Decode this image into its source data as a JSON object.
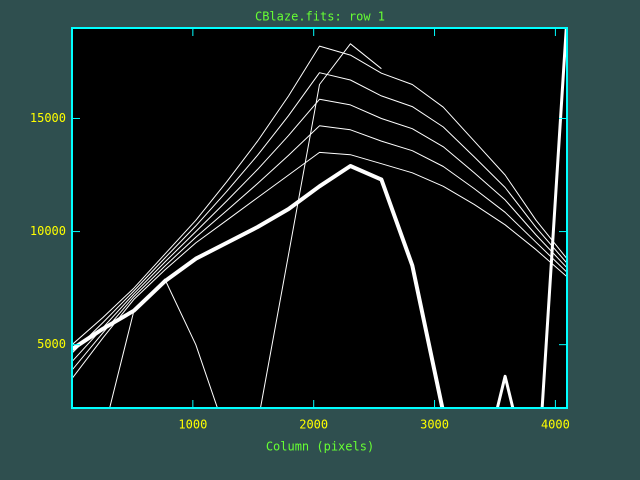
{
  "chart_data": {
    "type": "line",
    "title": "CBlaze.fits: row 1",
    "xlabel": "Column (pixels)",
    "x": [
      0,
      256,
      512,
      768,
      1024,
      1280,
      1536,
      1792,
      2048,
      2304,
      2560,
      2816,
      3072,
      3328,
      3584,
      3840,
      4096
    ],
    "series": [
      {
        "color": "#ffffff",
        "line_width": 1,
        "values": [
          3500,
          5300,
          7000,
          8300,
          9500,
          10500,
          11500,
          12500,
          13500,
          13400,
          13000,
          12600,
          12000,
          11200,
          10300,
          9200,
          8000
        ]
      },
      {
        "color": "#ffffff",
        "line_width": 1,
        "values": [
          3875,
          5525,
          7125,
          8475,
          9750,
          10925,
          12125,
          13375,
          14675,
          14500,
          14000,
          13575,
          12875,
          11900,
          10850,
          9525,
          8200
        ]
      },
      {
        "color": "#ffffff",
        "line_width": 1,
        "values": [
          4250,
          5750,
          7250,
          8650,
          10000,
          11350,
          12750,
          14250,
          15850,
          15600,
          15000,
          14550,
          13750,
          12600,
          11400,
          9850,
          8400
        ]
      },
      {
        "color": "#ffffff",
        "line_width": 1,
        "values": [
          4625,
          5975,
          7375,
          8825,
          10250,
          11775,
          13375,
          15125,
          17025,
          16700,
          16000,
          15525,
          14625,
          13300,
          11950,
          10175,
          8600
        ]
      },
      {
        "color": "#ffffff",
        "line_width": 1,
        "values": [
          5000,
          6200,
          7500,
          9000,
          10500,
          12200,
          14000,
          16000,
          18200,
          17800,
          17000,
          16500,
          15500,
          14000,
          12500,
          10500,
          8800
        ]
      },
      {
        "color": "#ffffff",
        "line_width": 4,
        "values": [
          4800,
          5700,
          6500,
          7800,
          8800,
          9500,
          10200,
          11000,
          12000,
          12900,
          12300,
          8500,
          2000,
          null,
          null,
          null,
          null
        ]
      },
      {
        "color": "#ffffff",
        "line_width": 1,
        "values": [
          null,
          null,
          null,
          null,
          null,
          null,
          1500,
          9000,
          16500,
          18300,
          17200,
          null,
          null,
          null,
          null,
          null,
          null
        ]
      },
      {
        "color": "#ffffff",
        "line_width": 1,
        "values": [
          null,
          1000,
          6500,
          7900,
          5000,
          1000,
          null,
          null,
          null,
          null,
          null,
          null,
          null,
          null,
          null,
          null,
          null
        ]
      },
      {
        "color": "#ffffff",
        "line_width": 3,
        "values": [
          null,
          null,
          null,
          null,
          null,
          null,
          null,
          null,
          null,
          null,
          null,
          null,
          null,
          -2000,
          3600,
          -2000,
          19500
        ]
      }
    ],
    "xlim": [
      0,
      4096
    ],
    "xticks": [
      1000,
      2000,
      3000,
      4000
    ],
    "ylim": [
      2200,
      19000
    ],
    "yticks": [
      5000,
      10000,
      15000
    ]
  }
}
